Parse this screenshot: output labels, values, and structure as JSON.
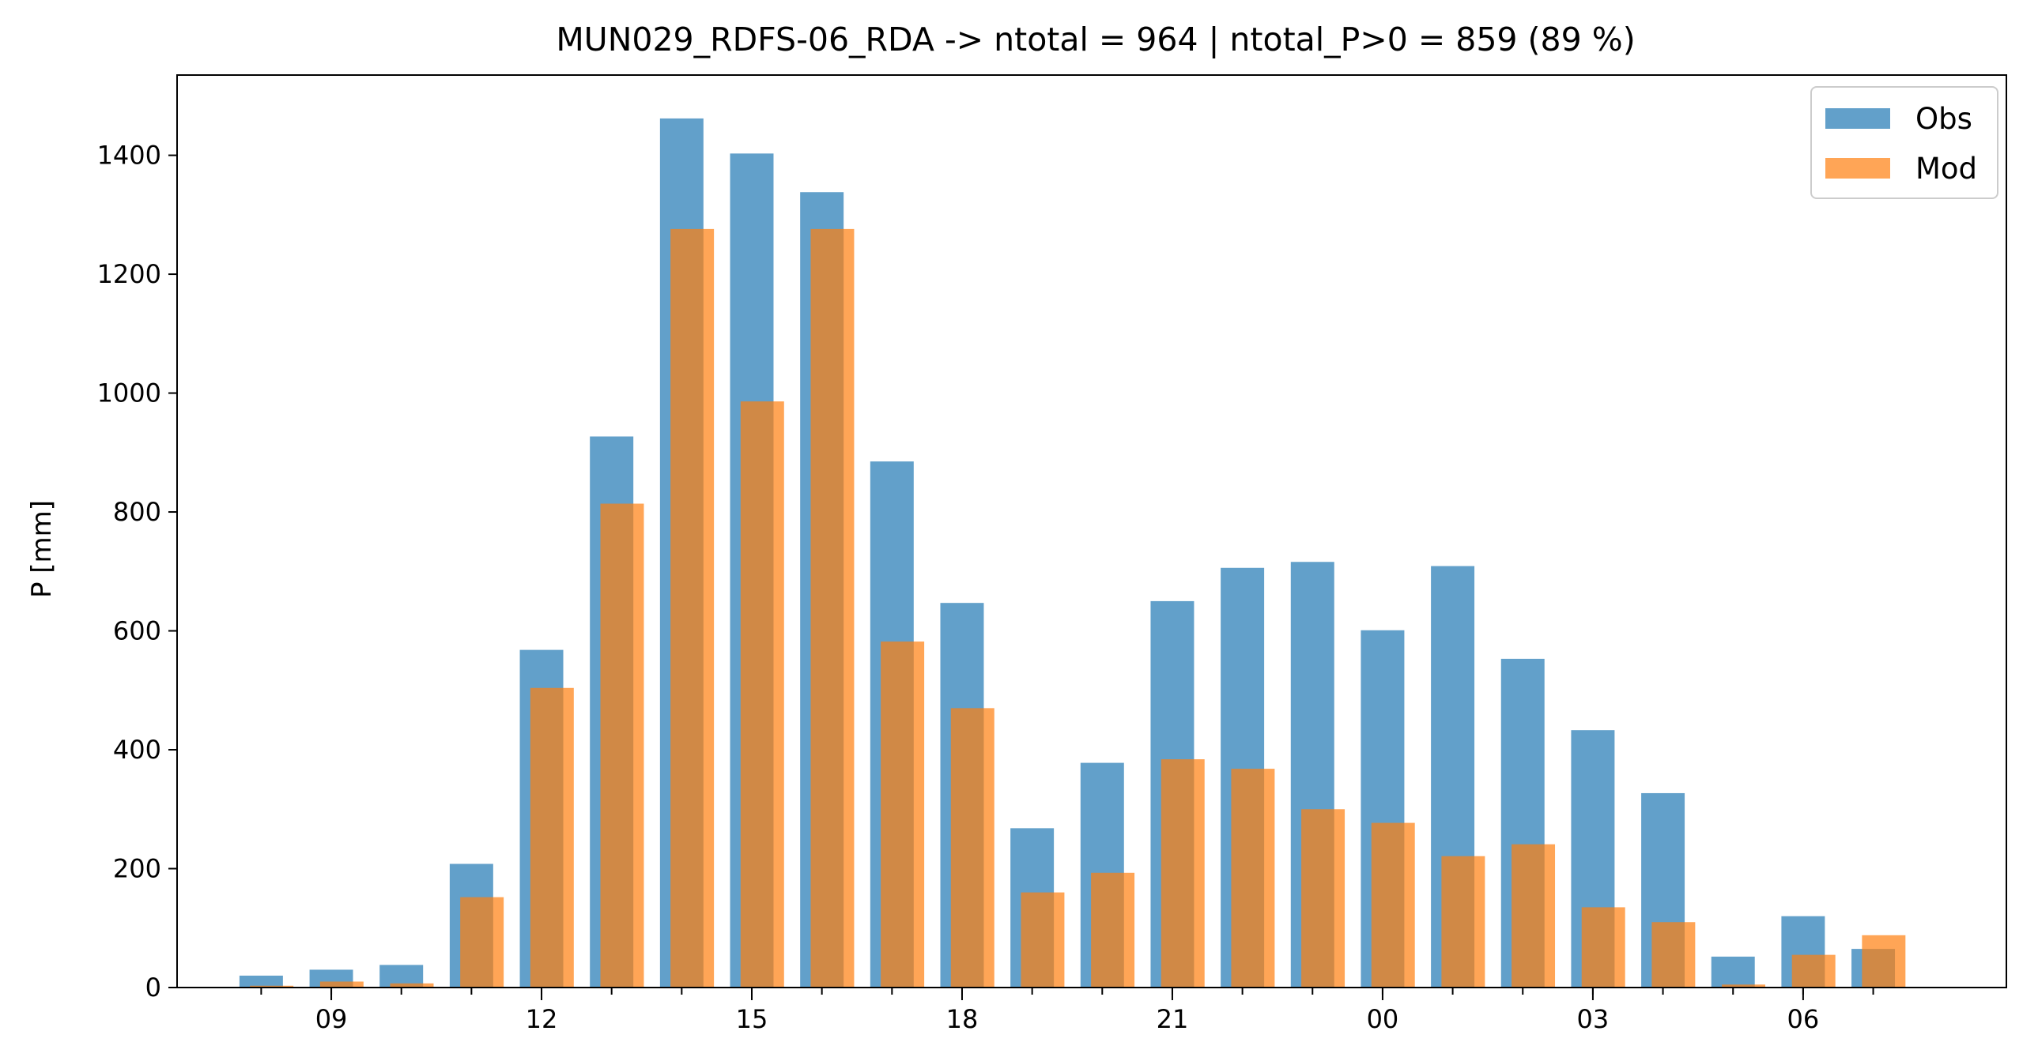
{
  "chart_data": {
    "type": "bar",
    "title": "MUN029_RDFS-06_RDA -> ntotal = 964 | ntotal_P>0 = 859 (89 %)",
    "xlabel": "",
    "ylabel": "P [mm]",
    "ylim": [
      0,
      1535
    ],
    "yticks": [
      0,
      200,
      400,
      600,
      800,
      1000,
      1200,
      1400
    ],
    "hours": [
      8,
      9,
      10,
      11,
      12,
      13,
      14,
      15,
      16,
      17,
      18,
      19,
      20,
      21,
      22,
      23,
      0,
      1,
      2,
      3,
      4,
      5,
      6,
      7
    ],
    "xtick_labels": [
      "09",
      "12",
      "15",
      "18",
      "21",
      "00",
      "03",
      "06"
    ],
    "grid": false,
    "legend_position": "top-right",
    "series": [
      {
        "name": "Obs",
        "color": "#1f77b4",
        "values": [
          20,
          30,
          38,
          208,
          568,
          927,
          1462,
          1403,
          1338,
          885,
          647,
          268,
          378,
          650,
          706,
          716,
          601,
          709,
          553,
          433,
          327,
          52,
          120,
          65
        ]
      },
      {
        "name": "Mod",
        "color": "#ff7f0e",
        "values": [
          3,
          10,
          7,
          152,
          504,
          814,
          1276,
          986,
          1276,
          582,
          470,
          160,
          193,
          384,
          368,
          300,
          277,
          221,
          241,
          135,
          110,
          5,
          55,
          88
        ]
      }
    ]
  }
}
